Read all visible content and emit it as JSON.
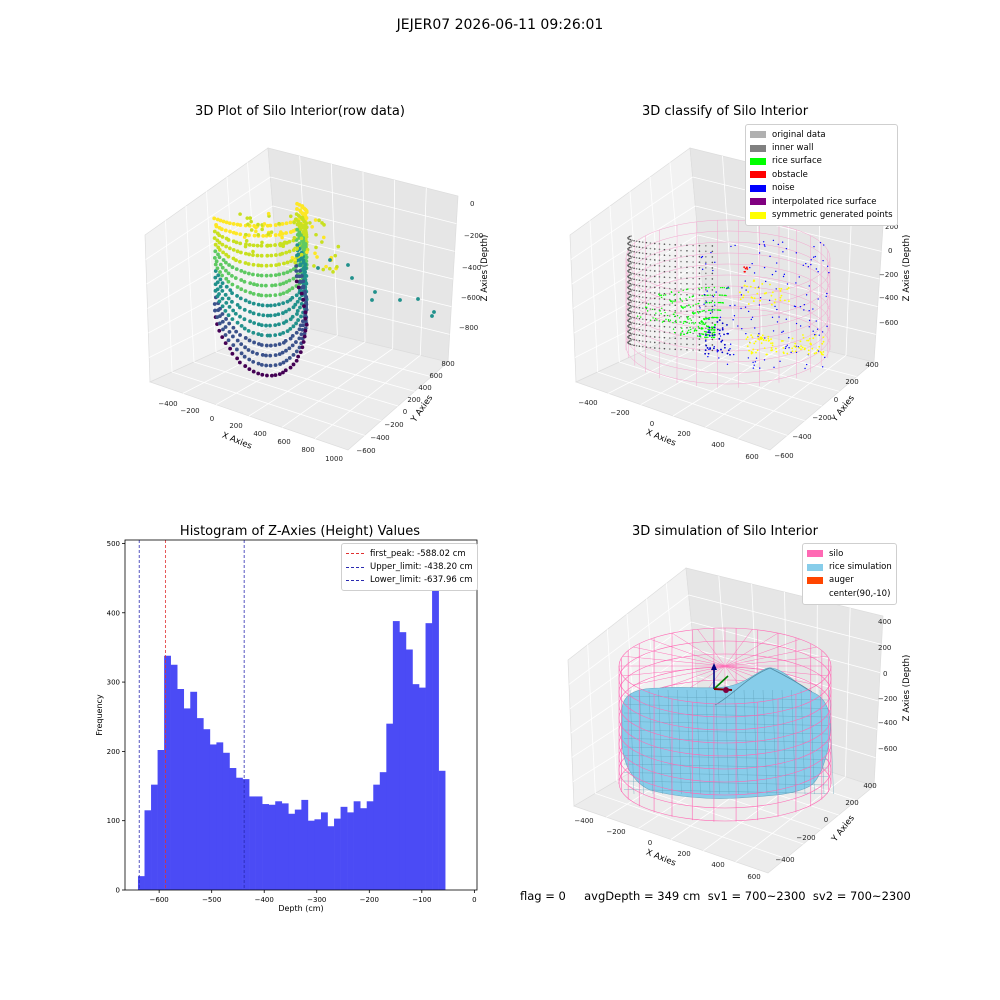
{
  "suptitle": "JEJER07 2026-06-11 09:26:01",
  "footer": "flag = 0     avgDepth = 349 cm  sv1 = 700~2300  sv2 = 700~2300",
  "colors": {
    "bars": "#4b4bf5",
    "first_peak": "#e03030",
    "limits": "#2a2ab0",
    "silo": "#ff69b4",
    "rice": "#87cdea",
    "grass": "#dcdcdc"
  },
  "panel1": {
    "title": "3D Plot of Silo Interior(row data)",
    "xlabel": "X Axies",
    "ylabel": "Y Axies",
    "zlabel": "Z Axies (Depth)",
    "xticks": [
      "−400",
      "−200",
      "0",
      "200",
      "400",
      "600",
      "800",
      "1000"
    ],
    "yticks": [
      "−600",
      "−400",
      "−200",
      "0",
      "200",
      "400",
      "600",
      "800"
    ],
    "zticks": [
      "0",
      "−200",
      "−400",
      "−600",
      "−800"
    ]
  },
  "panel2": {
    "title": "3D classify of Silo Interior",
    "xlabel": "X Axies",
    "ylabel": "Y Axies",
    "zlabel": "Z Axies (Depth)",
    "xticks": [
      "−400",
      "−200",
      "0",
      "200",
      "400",
      "600"
    ],
    "yticks": [
      "−600",
      "−400",
      "−200",
      "0",
      "200",
      "400"
    ],
    "zticks": [
      "200",
      "0",
      "−200",
      "−400",
      "−600"
    ],
    "zticks_top": "00",
    "legend": [
      {
        "label": "original data",
        "color": "#b0b0b0"
      },
      {
        "label": "inner wall",
        "color": "#808080"
      },
      {
        "label": "rice surface",
        "color": "#00ff00"
      },
      {
        "label": "obstacle",
        "color": "#ff0000"
      },
      {
        "label": "noise",
        "color": "#0000ff"
      },
      {
        "label": "interpolated rice surface",
        "color": "#800080"
      },
      {
        "label": "symmetric generated points",
        "color": "#ffff00"
      }
    ]
  },
  "panel4": {
    "title": "3D simulation of Silo Interior",
    "xlabel": "X Axies",
    "ylabel": "Y Axies",
    "zlabel": "Z Axies (Depth)",
    "xticks": [
      "−400",
      "−200",
      "0",
      "200",
      "400",
      "600"
    ],
    "yticks": [
      "−400",
      "−200",
      "0",
      "200",
      "400"
    ],
    "zticks": [
      "400",
      "200",
      "0",
      "−200",
      "−400",
      "−600"
    ],
    "legend": [
      {
        "label": "silo",
        "color": "#ff69b4"
      },
      {
        "label": "rice simulation",
        "color": "#87cdea"
      },
      {
        "label": "auger",
        "color": "#ff4500"
      },
      {
        "label": "center(90,-10)",
        "color": ""
      }
    ]
  },
  "chart_data": {
    "type": "bar",
    "title": "Histogram of Z-Axies (Height) Values",
    "xlabel": "Depth (cm)",
    "ylabel": "Frequency",
    "xlim": [
      -665,
      5
    ],
    "ylim": [
      0,
      505
    ],
    "xticks": [
      -600,
      -500,
      -400,
      -300,
      -200,
      -100,
      0
    ],
    "xtick_labels": [
      "−600",
      "−500",
      "−400",
      "−300",
      "−200",
      "−100",
      "0"
    ],
    "yticks": [
      0,
      100,
      200,
      300,
      400,
      500
    ],
    "yticks_labels": [
      "0",
      "100",
      "200",
      "300",
      "400",
      "500"
    ],
    "bin_start": -640.3,
    "bin_width": 12.44,
    "values": [
      20,
      115,
      152,
      202,
      338,
      325,
      290,
      262,
      286,
      248,
      232,
      210,
      213,
      198,
      176,
      162,
      160,
      135,
      135,
      124,
      123,
      128,
      125,
      110,
      116,
      130,
      100,
      102,
      112,
      92,
      103,
      120,
      112,
      128,
      118,
      128,
      152,
      170,
      240,
      388,
      372,
      347,
      297,
      292,
      385,
      478,
      172
    ],
    "lines": [
      {
        "name": "first_peak: -588.02 cm",
        "x": -588.02,
        "color": "#e03030"
      },
      {
        "name": "Upper_limit: -438.20 cm",
        "x": -438.2,
        "color": "#2a2ab0"
      },
      {
        "name": "Lower_limit: -637.96 cm",
        "x": -637.96,
        "color": "#2a2ab0"
      }
    ],
    "legend": "top-right",
    "grid": false
  }
}
